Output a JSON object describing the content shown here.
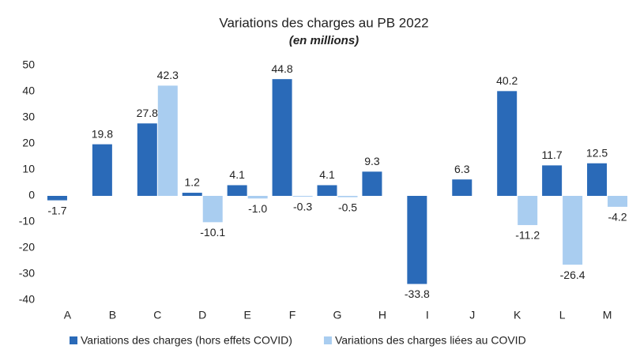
{
  "chart_data": {
    "type": "bar",
    "title": "Variations des charges au PB 2022",
    "subtitle": "(en millions)",
    "categories": [
      "A",
      "B",
      "C",
      "D",
      "E",
      "F",
      "G",
      "H",
      "I",
      "J",
      "K",
      "L",
      "M"
    ],
    "series": [
      {
        "name": "Variations des charges (hors effets COVID)",
        "color": "#2a6ab8",
        "values": [
          -1.7,
          19.8,
          27.8,
          1.2,
          4.1,
          44.8,
          4.1,
          9.3,
          -33.8,
          6.3,
          40.2,
          11.7,
          12.5
        ],
        "value_labels": [
          "-1.7",
          "19.8",
          "27.8",
          "1.2",
          "4.1",
          "44.8",
          "4.1",
          "9.3",
          "-33.8",
          "6.3",
          "40.2",
          "11.7",
          "12.5"
        ]
      },
      {
        "name": "Variations des charges liées au COVID",
        "color": "#a9cdf0",
        "values": [
          null,
          null,
          42.3,
          -10.1,
          -1.0,
          -0.3,
          -0.5,
          null,
          null,
          null,
          -11.2,
          -26.4,
          -4.2
        ],
        "value_labels": [
          null,
          null,
          "42.3",
          "-10.1",
          "-1.0",
          "-0.3",
          "-0.5",
          null,
          null,
          null,
          "-11.2",
          "-26.4",
          "-4.2"
        ]
      }
    ],
    "ylim": [
      -40,
      50
    ],
    "yticks": [
      -40,
      -30,
      -20,
      -10,
      0,
      10,
      20,
      30,
      40,
      50
    ],
    "grid": false,
    "legend": "bottom"
  }
}
